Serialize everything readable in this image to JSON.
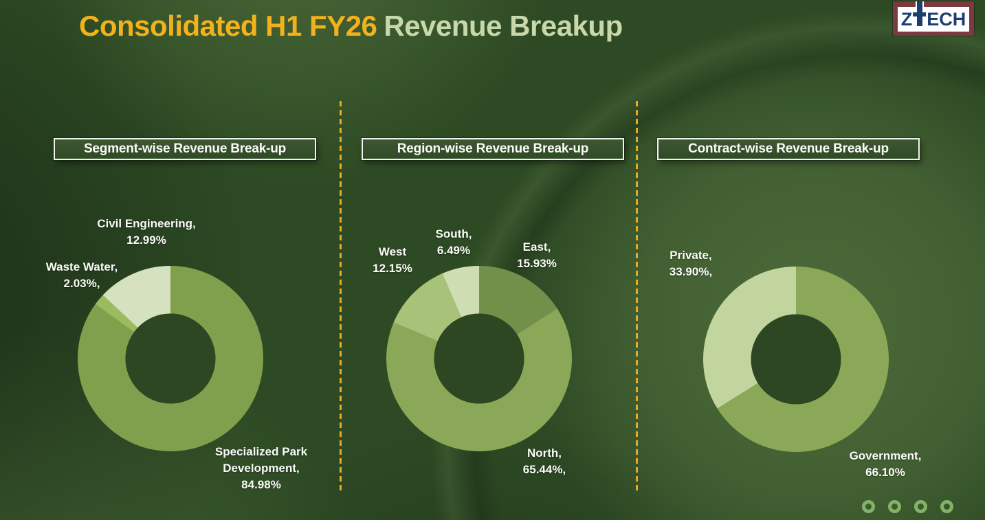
{
  "title": {
    "highlight": "Consolidated H1 FY26",
    "rest": "Revenue Breakup"
  },
  "logo": {
    "text": "ZTECH",
    "left": "Z",
    "right": "ECH"
  },
  "colors": {
    "bg-base": "#2d4a24",
    "accent-yellow": "#f2b21c",
    "title-sage": "#c8d8aa",
    "divider-gold": "#e8ab22",
    "ring-green": "#84b266",
    "logo-maroon": "#7b3a40",
    "logo-navy": "#1d3e70",
    "donut-hole": "#2c4722"
  },
  "chart_data": [
    {
      "type": "pie",
      "subtype": "donut",
      "title": "Segment-wise Revenue Break-up",
      "legend": "none",
      "labels_position": "outside",
      "start_angle_deg": 0,
      "direction": "clockwise",
      "hole_ratio": 0.485,
      "slices": [
        {
          "name": "Specialized Park Development",
          "value": 84.98,
          "color": "#81a04d",
          "label_lines": [
            "Specialized Park",
            "Development,",
            "84.98%"
          ]
        },
        {
          "name": "Waste Water",
          "value": 2.03,
          "color": "#9cbb5e",
          "label_lines": [
            "Waste Water,",
            "2.03%,"
          ]
        },
        {
          "name": "Civil Engineering",
          "value": 12.99,
          "color": "#d5e1bf",
          "label_lines": [
            "Civil Engineering,",
            "12.99%"
          ]
        }
      ]
    },
    {
      "type": "pie",
      "subtype": "donut",
      "title": "Region-wise Revenue Break-up",
      "legend": "none",
      "labels_position": "outside",
      "start_angle_deg": 0,
      "direction": "clockwise",
      "hole_ratio": 0.485,
      "slices": [
        {
          "name": "East",
          "value": 15.93,
          "color": "#72904a",
          "label_lines": [
            "East,",
            "15.93%"
          ]
        },
        {
          "name": "North",
          "value": 65.44,
          "color": "#8aa857",
          "label_lines": [
            "North,",
            "65.44%,"
          ]
        },
        {
          "name": "West",
          "value": 12.15,
          "color": "#a9c279",
          "label_lines": [
            "West",
            "12.15%"
          ]
        },
        {
          "name": "South",
          "value": 6.49,
          "color": "#cfdeb2",
          "label_lines": [
            "South,",
            "6.49%"
          ]
        }
      ]
    },
    {
      "type": "pie",
      "subtype": "donut",
      "title": "Contract-wise Revenue Break-up",
      "legend": "none",
      "labels_position": "outside",
      "start_angle_deg": 0,
      "direction": "clockwise",
      "hole_ratio": 0.485,
      "slices": [
        {
          "name": "Government",
          "value": 66.1,
          "color": "#8aa857",
          "label_lines": [
            "Government,",
            "66.10%"
          ]
        },
        {
          "name": "Private",
          "value": 33.9,
          "color": "#c3d59e",
          "label_lines": [
            "Private,",
            "33.90%,"
          ]
        }
      ]
    }
  ]
}
